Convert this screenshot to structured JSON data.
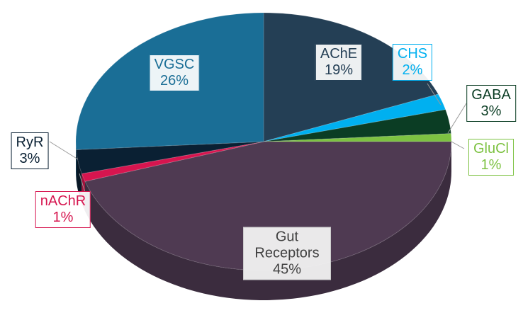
{
  "chart_data": {
    "type": "pie",
    "categories": [
      "AChE",
      "CHS",
      "GABA",
      "GluCl",
      "Gut Receptors",
      "nAChR",
      "RyR",
      "VGSC"
    ],
    "values": [
      19,
      2,
      3,
      1,
      45,
      1,
      3,
      26
    ],
    "value_labels": [
      "19%",
      "2%",
      "3%",
      "1%",
      "45%",
      "1%",
      "3%",
      "26%"
    ],
    "colors": [
      "#243f55",
      "#00b0f0",
      "#0b3d24",
      "#7dc242",
      "#4f3a52",
      "#d6154f",
      "#0a2033",
      "#1a6e96"
    ]
  }
}
